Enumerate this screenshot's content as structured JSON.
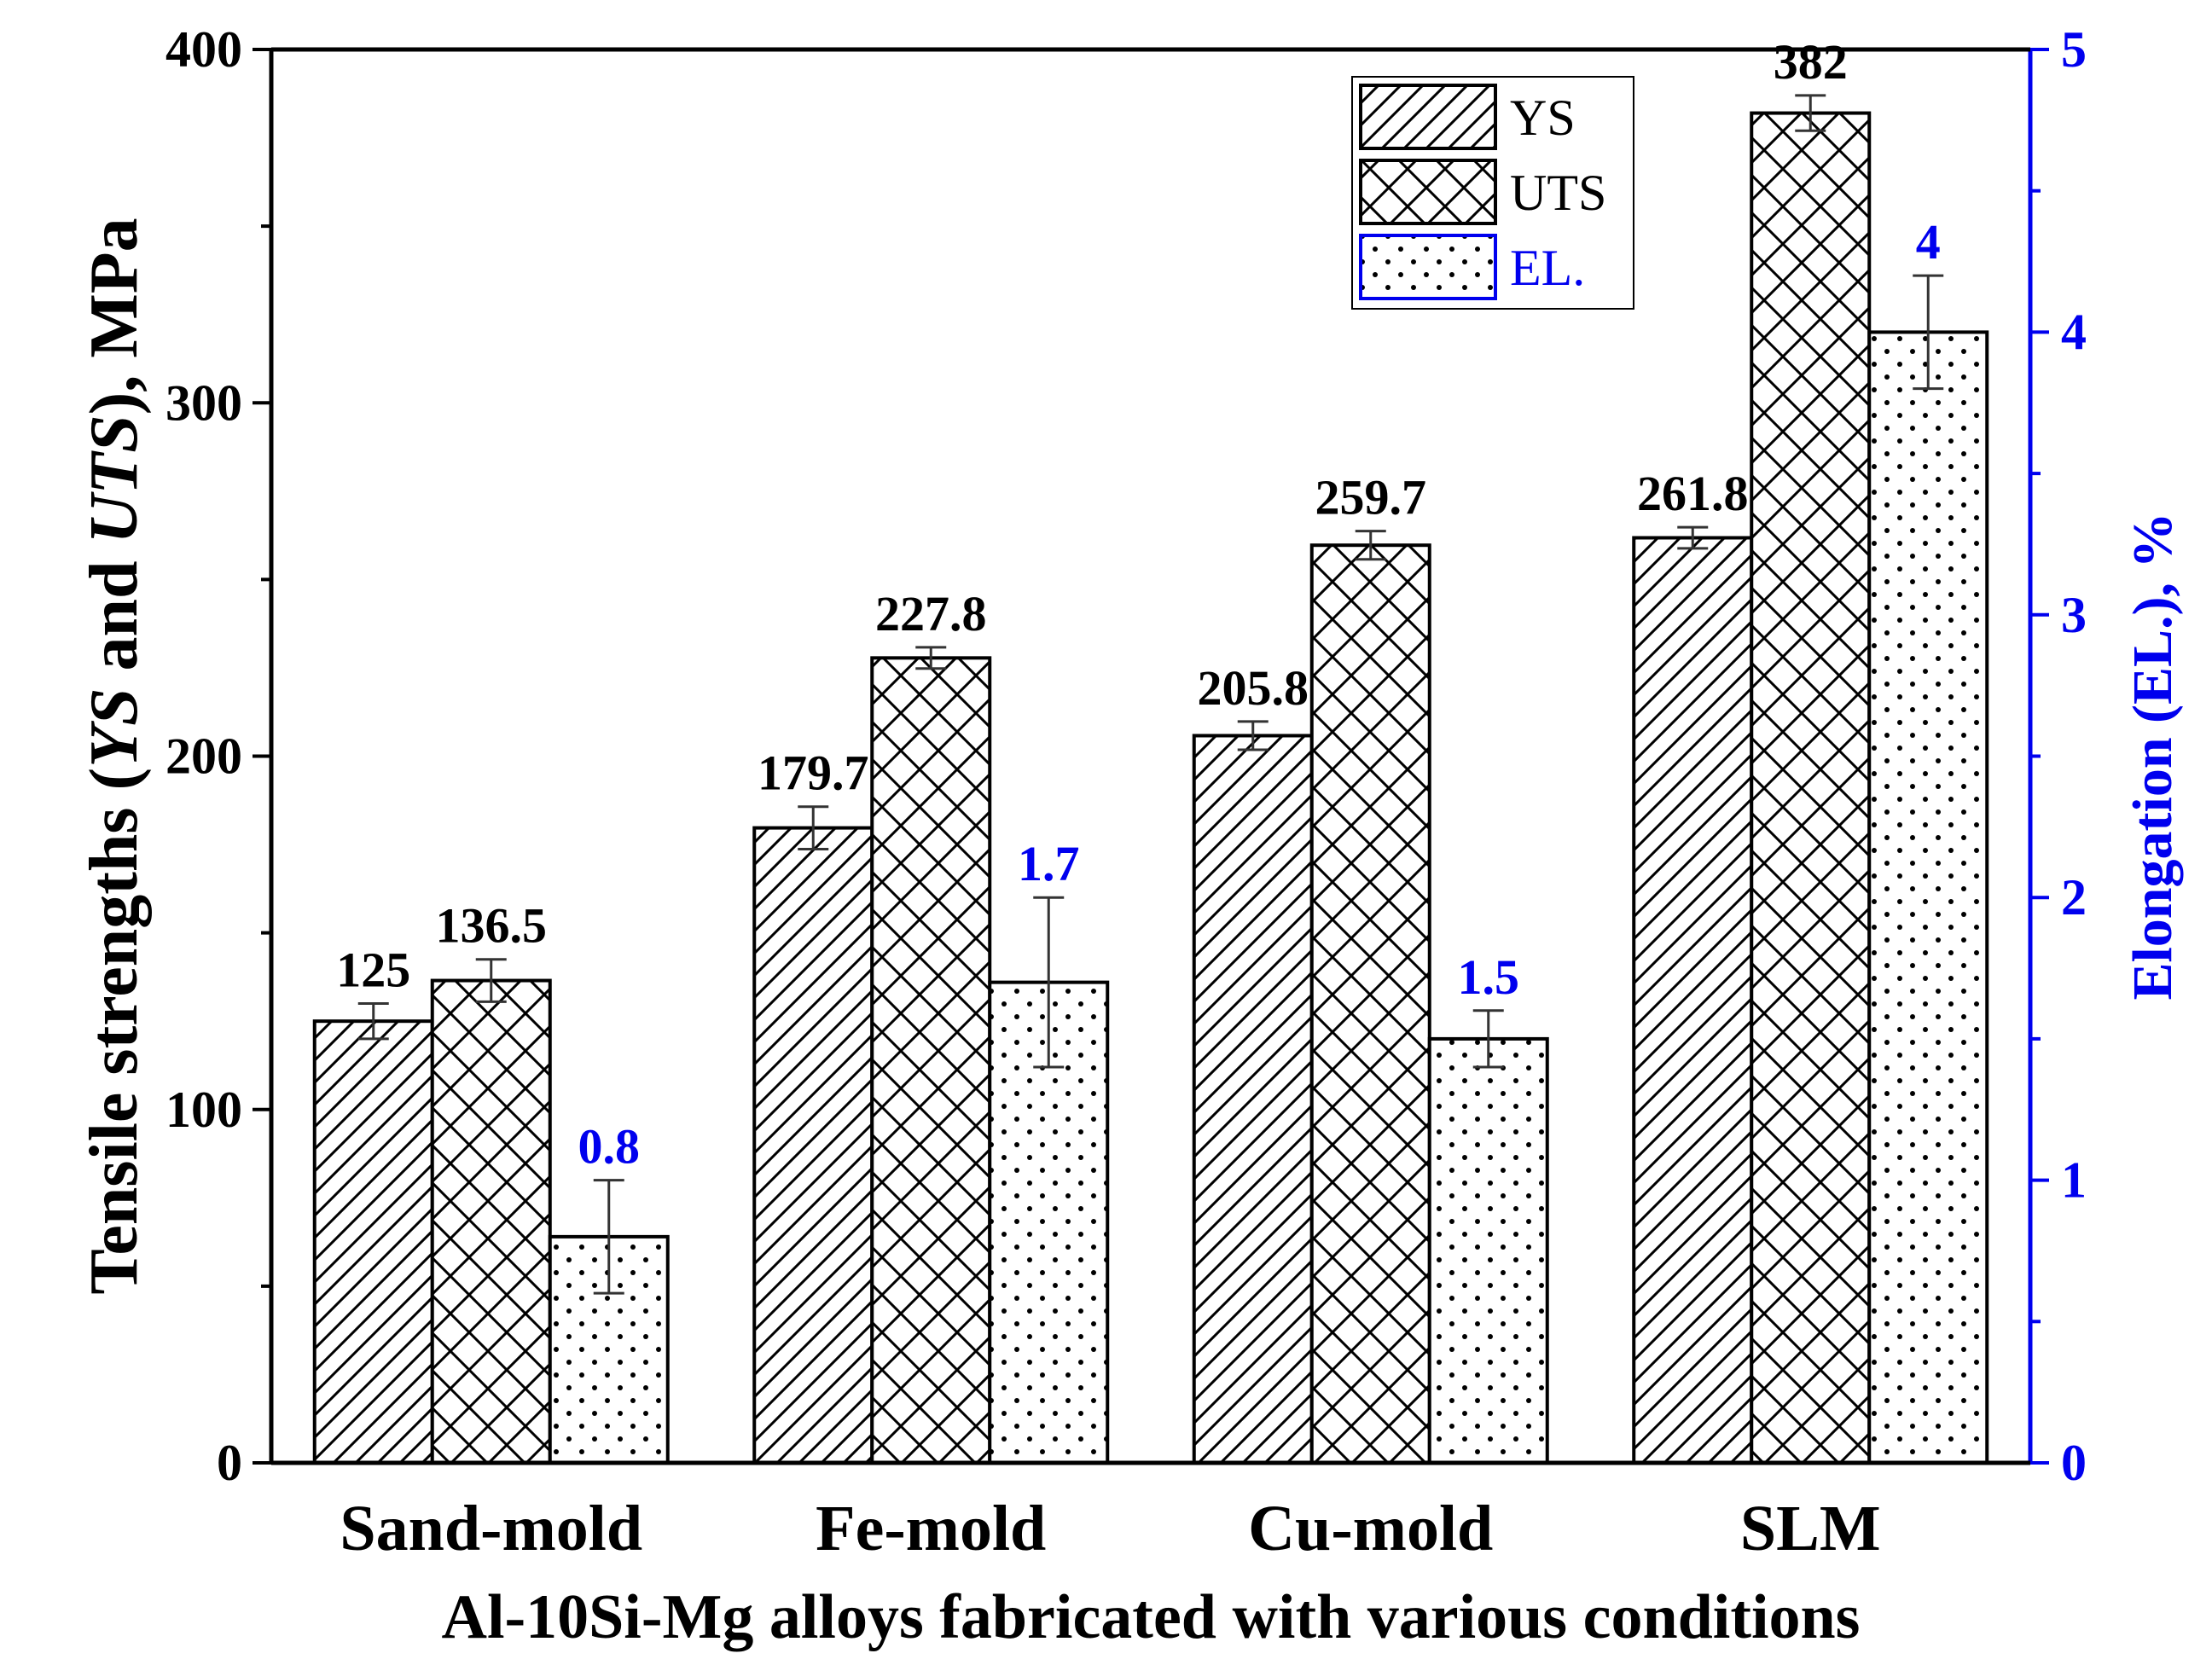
{
  "chart_data": {
    "type": "bar",
    "xlabel": "Al-10Si-Mg alloys fabricated with various conditions",
    "ylabel_parts": [
      "Tensile strengths  (",
      "YS",
      " and ",
      "UTS",
      "), MPa"
    ],
    "y2label": "Elongation (EL.), %",
    "categories": [
      "Sand-mold",
      "Fe-mold",
      "Cu-mold",
      "SLM"
    ],
    "ylim": [
      0,
      400
    ],
    "y2lim": [
      0,
      5
    ],
    "yticks": [
      "0",
      "100",
      "200",
      "300",
      "400"
    ],
    "y2ticks": [
      "0",
      "1",
      "2",
      "3",
      "4",
      "5"
    ],
    "series": [
      {
        "name": "YS",
        "axis": "left",
        "pattern": "hatch",
        "values": [
          125,
          179.7,
          205.8,
          261.8
        ],
        "labels": [
          "125",
          "179.7",
          "205.8",
          "261.8"
        ],
        "errors": [
          5,
          6,
          4,
          3
        ]
      },
      {
        "name": "UTS",
        "axis": "left",
        "pattern": "crosshatch",
        "values": [
          136.5,
          227.8,
          259.7,
          382
        ],
        "labels": [
          "136.5",
          "227.8",
          "259.7",
          "382"
        ],
        "errors": [
          6,
          3,
          4,
          5
        ]
      },
      {
        "name": "EL.",
        "axis": "right",
        "pattern": "dots",
        "values": [
          0.8,
          1.7,
          1.5,
          4
        ],
        "labels": [
          "0.8",
          "1.7",
          "1.5",
          "4"
        ],
        "errors": [
          0.2,
          0.3,
          0.1,
          0.2
        ]
      }
    ],
    "legend": {
      "placement": "top-right",
      "entries": [
        "YS",
        "UTS",
        "EL."
      ]
    },
    "colors": {
      "axis": "#000000",
      "right_axis": "#0000ee",
      "bar_fill": "#ffffff"
    }
  }
}
